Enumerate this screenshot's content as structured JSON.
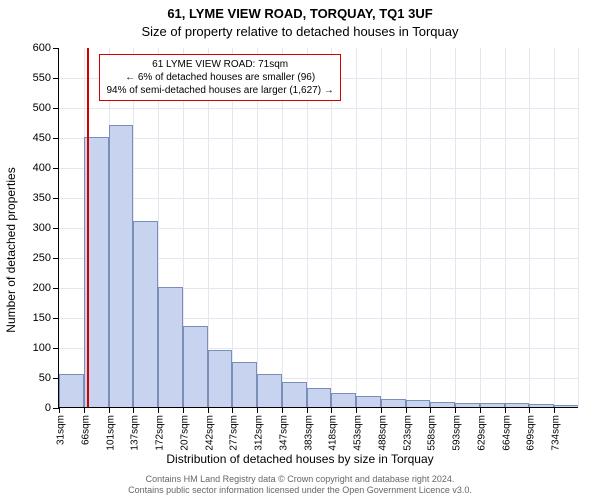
{
  "title": "61, LYME VIEW ROAD, TORQUAY, TQ1 3UF",
  "subtitle": "Size of property relative to detached houses in Torquay",
  "ylabel": "Number of detached properties",
  "xlabel": "Distribution of detached houses by size in Torquay",
  "footer_line1": "Contains HM Land Registry data © Crown copyright and database right 2024.",
  "footer_line2": "Contains public sector information licensed under the Open Government Licence v3.0.",
  "chart": {
    "type": "histogram",
    "ylim": [
      0,
      600
    ],
    "ytick_step": 50,
    "grid_color": "#e6e6f0",
    "bar_fill": "#c8d4ef",
    "bar_stroke": "#7a8fb8",
    "background_color": "#ffffff",
    "marker_color": "#d40000",
    "marker_x_index": 1.15,
    "annot_border": "#d40000",
    "annot_lines": [
      "61 LYME VIEW ROAD: 71sqm",
      "← 6% of detached houses are smaller (96)",
      "94% of semi-detached houses are larger (1,627) →"
    ],
    "categories": [
      "31sqm",
      "66sqm",
      "101sqm",
      "137sqm",
      "172sqm",
      "207sqm",
      "242sqm",
      "277sqm",
      "312sqm",
      "347sqm",
      "383sqm",
      "418sqm",
      "453sqm",
      "488sqm",
      "523sqm",
      "558sqm",
      "593sqm",
      "629sqm",
      "664sqm",
      "699sqm",
      "734sqm"
    ],
    "values": [
      55,
      450,
      470,
      310,
      200,
      135,
      95,
      75,
      55,
      42,
      32,
      24,
      18,
      14,
      11,
      9,
      7,
      6,
      6,
      5,
      4
    ]
  }
}
